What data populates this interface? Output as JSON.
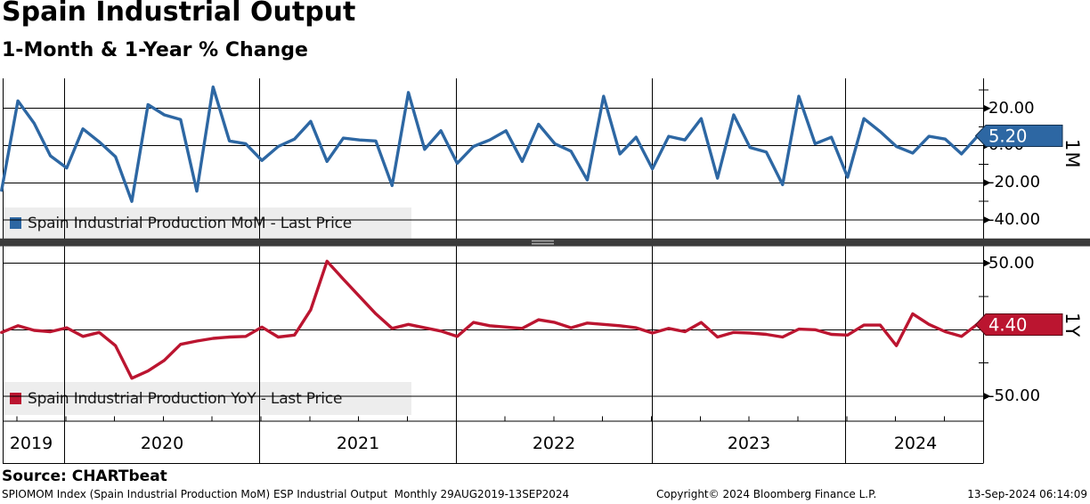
{
  "header": {
    "title": "Spain Industrial Output",
    "subtitle": "1-Month & 1-Year % Change"
  },
  "top_panel": {
    "legend_label": "Spain Industrial Production MoM - Last Price",
    "axis_label": "1M",
    "last_price": "5.20",
    "yticks": [
      "20.00",
      "0.00",
      "-20.00",
      "-40.00"
    ]
  },
  "bottom_panel": {
    "legend_label": "Spain Industrial Production YoY - Last Price",
    "axis_label": "1Y",
    "last_price": "4.40",
    "yticks": [
      "50.00",
      "0.00",
      "-50.00"
    ]
  },
  "x_axis": {
    "years": [
      "2019",
      "2020",
      "2021",
      "2022",
      "2023",
      "2024"
    ]
  },
  "footer": {
    "source": "Source: CHARTbeat",
    "meta": "SPIOMOM Index (Spain Industrial Production MoM) ESP Industrial Output  Monthly 29AUG2019-13SEP2024",
    "copyright": "Copyright© 2024 Bloomberg Finance L.P.",
    "timestamp": "13-Sep-2024 06:14:09"
  },
  "chart_data": [
    {
      "type": "line",
      "title": "Spain Industrial Production MoM - Last Price",
      "panel": "1M",
      "freq": "monthly",
      "x_start": "Aug 2019",
      "x_end": "Aug 2024",
      "ylim": [
        -50,
        36
      ],
      "ytick_values": [
        20,
        0,
        -20,
        -40
      ],
      "last_price": 5.2,
      "color": "#2d67a3",
      "values": [
        -24,
        24,
        12,
        -5.5,
        -12,
        9,
        2,
        -6,
        -30,
        22,
        16.5,
        14,
        -24.5,
        31.5,
        2.5,
        1,
        -8,
        -0.5,
        3.5,
        13,
        -8.5,
        4,
        3,
        2.5,
        -21.5,
        28.5,
        -2,
        8,
        -9.5,
        -0.5,
        3,
        8,
        -8.5,
        11.5,
        1,
        -3,
        -18.5,
        26.5,
        -4.5,
        4.5,
        -12.5,
        5,
        3,
        14.5,
        -17.5,
        16.5,
        -1,
        -3.5,
        -21,
        26.5,
        1,
        4.5,
        -17,
        14.5,
        7.5,
        -0.5,
        -4,
        5,
        3.5,
        -4.5,
        5.2
      ]
    },
    {
      "type": "line",
      "title": "Spain Industrial Production YoY - Last Price",
      "panel": "1Y",
      "freq": "monthly",
      "x_start": "Aug 2019",
      "x_end": "Aug 2024",
      "ylim": [
        -68,
        62
      ],
      "ytick_values": [
        50,
        0,
        -50
      ],
      "last_price": 4.4,
      "color": "#bb1530",
      "values": [
        -2,
        3,
        -0.5,
        -1.5,
        1.5,
        -5,
        -2,
        -12,
        -36.5,
        -31,
        -23,
        -11,
        -8.5,
        -6.5,
        -5.5,
        -5,
        2,
        -5.5,
        -4,
        15,
        51.5,
        38,
        25,
        12,
        1,
        4,
        1.5,
        -1,
        -5,
        5.5,
        3,
        2,
        1,
        7.5,
        5.5,
        1.5,
        5,
        4,
        3,
        1.5,
        -2.5,
        1,
        -1.5,
        5.5,
        -5.5,
        -2,
        -2.5,
        -3.5,
        -5.5,
        0.5,
        0,
        -3.5,
        -4,
        3.5,
        3.5,
        -12,
        12,
        4,
        -1.5,
        -5,
        4.4
      ]
    }
  ]
}
